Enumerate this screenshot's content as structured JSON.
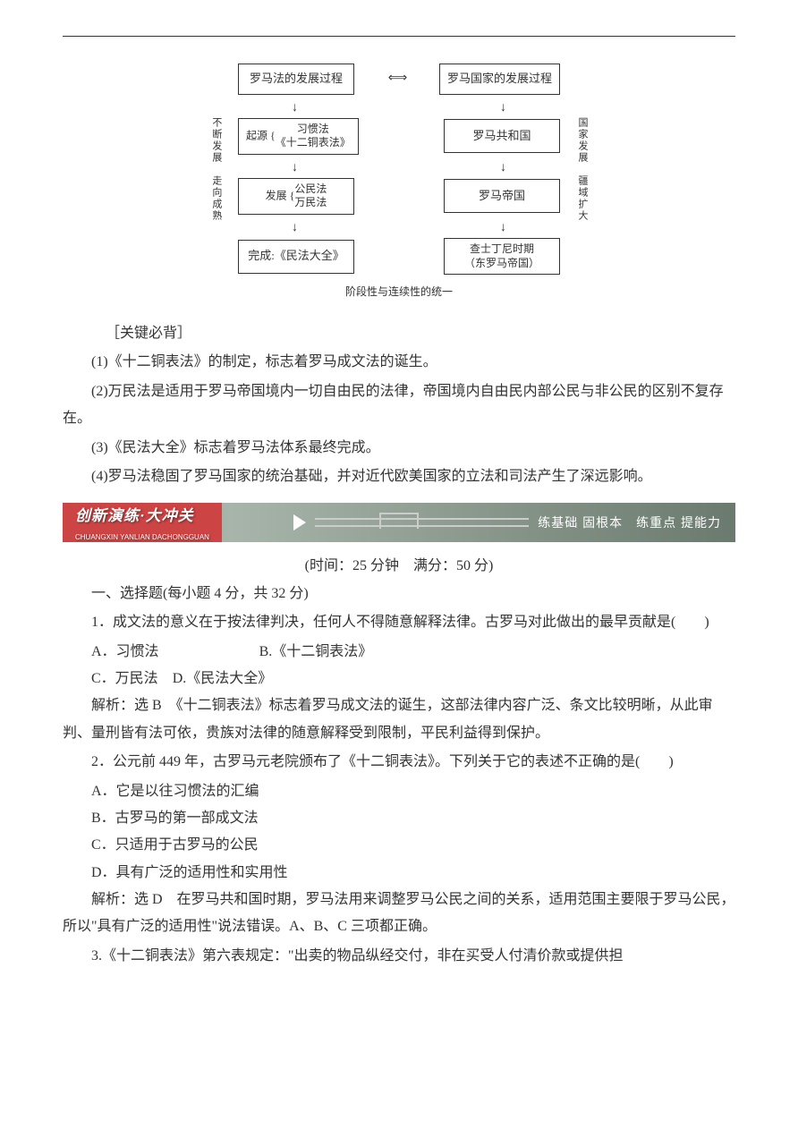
{
  "diagram": {
    "top_left": "罗马法的发展过程",
    "top_right": "罗马国家的发展过程",
    "row1_left_label": "起源",
    "row1_left_items": "习惯法\n《十二铜表法》",
    "row1_right": "罗马共和国",
    "row2_left_label": "发展",
    "row2_left_items": "公民法\n万民法",
    "row2_right": "罗马帝国",
    "row3_left": "完成:《民法大全》",
    "row3_right": "查士丁尼时期\n（东罗马帝国）",
    "side_left": "不断发展　走向成熟",
    "side_right": "国家发展　疆域扩大",
    "bottom": "阶段性与连续性的统一"
  },
  "key_label": "［关键必背］",
  "keys": [
    "(1)《十二铜表法》的制定，标志着罗马成文法的诞生。",
    "(2)万民法是适用于罗马帝国境内一切自由民的法律，帝国境内自由民内部公民与非公民的区别不复存在。",
    "(3)《民法大全》标志着罗马法体系最终完成。",
    "(4)罗马法稳固了罗马国家的统治基础，并对近代欧美国家的立法和司法产生了深远影响。"
  ],
  "banner": {
    "title": "创新演练·大冲关",
    "pinyin": "CHUANGXIN YANLIAN DACHONGGUAN",
    "right": "练基础 固根本　练重点 提能力"
  },
  "exam_info": "(时间：25 分钟　满分：50 分)",
  "section1_title": "一、选择题(每小题 4 分，共 32 分)",
  "q1": {
    "stem": "1．成文法的意义在于按法律判决，任何人不得随意解释法律。古罗马对此做出的最早贡献是(　　)",
    "optA": "A．习惯法",
    "optB": "B.《十二铜表法》",
    "optC": "C．万民法",
    "optD": "D.《民法大全》",
    "ans": "解析：选 B　《十二铜表法》标志着罗马成文法的诞生，这部法律内容广泛、条文比较明晰，从此审判、量刑皆有法可依，贵族对法律的随意解释受到限制，平民利益得到保护。"
  },
  "q2": {
    "stem": "2．公元前 449 年，古罗马元老院颁布了《十二铜表法》。下列关于它的表述不正确的是(　　)",
    "optA": "A．它是以往习惯法的汇编",
    "optB": "B．古罗马的第一部成文法",
    "optC": "C．只适用于古罗马的公民",
    "optD": "D．具有广泛的适用性和实用性",
    "ans": "解析：选 D　在罗马共和国时期，罗马法用来调整罗马公民之间的关系，适用范围主要限于罗马公民，所以\"具有广泛的适用性\"说法错误。A、B、C 三项都正确。"
  },
  "q3": {
    "stem": "3.《十二铜表法》第六表规定：\"出卖的物品纵经交付，非在买受人付清价款或提供担"
  },
  "colors": {
    "text": "#333333",
    "border": "#333333",
    "banner_red": "#c44444",
    "banner_bg": "#8b9a8e"
  }
}
